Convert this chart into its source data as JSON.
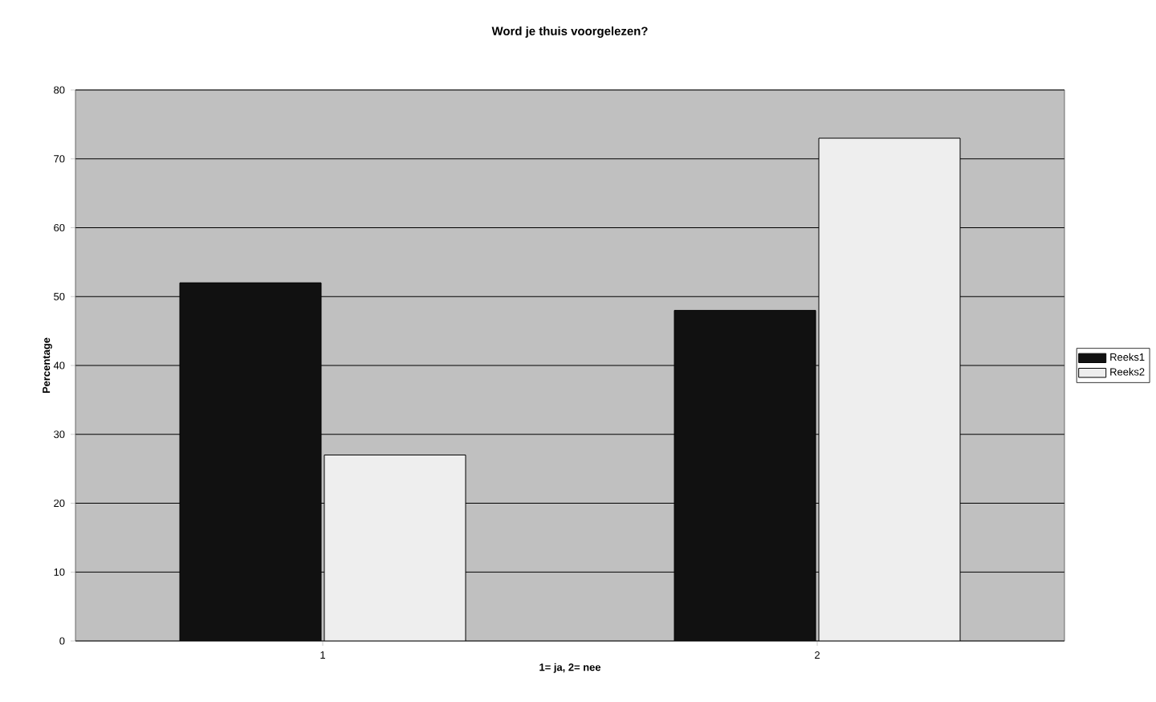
{
  "chart_data": {
    "type": "bar",
    "title": "Word je thuis voorgelezen?",
    "xlabel": "1= ja, 2= nee",
    "ylabel": "Percentage",
    "categories": [
      "1",
      "2"
    ],
    "series": [
      {
        "name": "Reeks1",
        "color": "#111111",
        "values": [
          52,
          48
        ]
      },
      {
        "name": "Reeks2",
        "color": "#eeeeee",
        "values": [
          27,
          73
        ]
      }
    ],
    "ylim": [
      0,
      80
    ],
    "yticks": [
      0,
      10,
      20,
      30,
      40,
      50,
      60,
      70,
      80
    ],
    "grid": "y",
    "legend": "right"
  }
}
